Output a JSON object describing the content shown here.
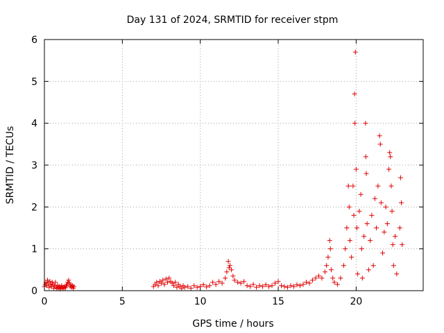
{
  "chart_data": {
    "type": "scatter",
    "title": "Day 131 of 2024, SRMTID for receiver stpm",
    "xlabel": "GPS time / hours",
    "ylabel": "SRMTID / TECUs",
    "xlim": [
      0,
      24.3
    ],
    "ylim": [
      0,
      6
    ],
    "xticks": [
      0,
      5,
      10,
      15,
      20
    ],
    "yticks": [
      0,
      1,
      2,
      3,
      4,
      5,
      6
    ],
    "grid": true,
    "marker": "+",
    "color": "#e00000",
    "series": [
      {
        "name": "SRMTID",
        "points": [
          [
            0.0,
            0.1
          ],
          [
            0.05,
            0.15
          ],
          [
            0.1,
            0.2
          ],
          [
            0.15,
            0.12
          ],
          [
            0.2,
            0.25
          ],
          [
            0.25,
            0.18
          ],
          [
            0.3,
            0.08
          ],
          [
            0.35,
            0.22
          ],
          [
            0.4,
            0.14
          ],
          [
            0.45,
            0.1
          ],
          [
            0.5,
            0.2
          ],
          [
            0.55,
            0.16
          ],
          [
            0.6,
            0.06
          ],
          [
            0.65,
            0.12
          ],
          [
            0.7,
            0.2
          ],
          [
            0.75,
            0.09
          ],
          [
            0.8,
            0.05
          ],
          [
            0.85,
            0.13
          ],
          [
            0.9,
            0.07
          ],
          [
            0.95,
            0.1
          ],
          [
            1.0,
            0.04
          ],
          [
            1.05,
            0.08
          ],
          [
            1.1,
            0.12
          ],
          [
            1.15,
            0.06
          ],
          [
            1.2,
            0.09
          ],
          [
            1.25,
            0.05
          ],
          [
            1.3,
            0.1
          ],
          [
            1.35,
            0.07
          ],
          [
            1.4,
            0.12
          ],
          [
            1.45,
            0.15
          ],
          [
            1.5,
            0.2
          ],
          [
            1.55,
            0.25
          ],
          [
            1.6,
            0.18
          ],
          [
            1.65,
            0.1
          ],
          [
            1.7,
            0.14
          ],
          [
            1.75,
            0.08
          ],
          [
            1.8,
            0.12
          ],
          [
            1.85,
            0.06
          ],
          [
            1.9,
            0.1
          ],
          [
            7.0,
            0.1
          ],
          [
            7.1,
            0.15
          ],
          [
            7.2,
            0.2
          ],
          [
            7.3,
            0.12
          ],
          [
            7.4,
            0.22
          ],
          [
            7.5,
            0.18
          ],
          [
            7.6,
            0.25
          ],
          [
            7.7,
            0.15
          ],
          [
            7.8,
            0.28
          ],
          [
            7.9,
            0.2
          ],
          [
            8.0,
            0.3
          ],
          [
            8.1,
            0.22
          ],
          [
            8.2,
            0.18
          ],
          [
            8.3,
            0.12
          ],
          [
            8.4,
            0.2
          ],
          [
            8.5,
            0.08
          ],
          [
            8.6,
            0.15
          ],
          [
            8.7,
            0.1
          ],
          [
            8.8,
            0.05
          ],
          [
            8.9,
            0.12
          ],
          [
            9.0,
            0.08
          ],
          [
            9.2,
            0.1
          ],
          [
            9.4,
            0.06
          ],
          [
            9.6,
            0.12
          ],
          [
            9.8,
            0.08
          ],
          [
            10.0,
            0.1
          ],
          [
            10.2,
            0.14
          ],
          [
            10.4,
            0.09
          ],
          [
            10.6,
            0.12
          ],
          [
            10.8,
            0.2
          ],
          [
            11.0,
            0.15
          ],
          [
            11.2,
            0.22
          ],
          [
            11.4,
            0.18
          ],
          [
            11.6,
            0.3
          ],
          [
            11.7,
            0.45
          ],
          [
            11.8,
            0.7
          ],
          [
            11.85,
            0.55
          ],
          [
            11.9,
            0.6
          ],
          [
            12.0,
            0.5
          ],
          [
            12.1,
            0.35
          ],
          [
            12.2,
            0.25
          ],
          [
            12.4,
            0.2
          ],
          [
            12.6,
            0.18
          ],
          [
            12.8,
            0.22
          ],
          [
            13.0,
            0.12
          ],
          [
            13.2,
            0.1
          ],
          [
            13.4,
            0.15
          ],
          [
            13.6,
            0.08
          ],
          [
            13.8,
            0.12
          ],
          [
            14.0,
            0.1
          ],
          [
            14.2,
            0.14
          ],
          [
            14.4,
            0.1
          ],
          [
            14.6,
            0.12
          ],
          [
            14.8,
            0.18
          ],
          [
            15.0,
            0.22
          ],
          [
            15.2,
            0.12
          ],
          [
            15.4,
            0.1
          ],
          [
            15.6,
            0.08
          ],
          [
            15.8,
            0.12
          ],
          [
            16.0,
            0.1
          ],
          [
            16.2,
            0.14
          ],
          [
            16.4,
            0.12
          ],
          [
            16.6,
            0.15
          ],
          [
            16.8,
            0.2
          ],
          [
            17.0,
            0.18
          ],
          [
            17.2,
            0.25
          ],
          [
            17.4,
            0.3
          ],
          [
            17.6,
            0.35
          ],
          [
            17.8,
            0.3
          ],
          [
            18.0,
            0.45
          ],
          [
            18.1,
            0.6
          ],
          [
            18.2,
            0.8
          ],
          [
            18.3,
            1.2
          ],
          [
            18.35,
            1.0
          ],
          [
            18.4,
            0.5
          ],
          [
            18.5,
            0.3
          ],
          [
            18.6,
            0.2
          ],
          [
            18.8,
            0.15
          ],
          [
            19.0,
            0.3
          ],
          [
            19.2,
            0.6
          ],
          [
            19.3,
            1.0
          ],
          [
            19.4,
            1.5
          ],
          [
            19.5,
            2.5
          ],
          [
            19.55,
            2.0
          ],
          [
            19.6,
            1.2
          ],
          [
            19.7,
            0.8
          ],
          [
            19.8,
            2.5
          ],
          [
            19.85,
            1.8
          ],
          [
            19.9,
            4.7
          ],
          [
            19.92,
            4.0
          ],
          [
            19.95,
            5.7
          ],
          [
            20.0,
            2.9
          ],
          [
            20.05,
            1.5
          ],
          [
            20.1,
            0.4
          ],
          [
            20.2,
            1.9
          ],
          [
            20.3,
            2.3
          ],
          [
            20.35,
            1.0
          ],
          [
            20.4,
            0.3
          ],
          [
            20.5,
            1.3
          ],
          [
            20.6,
            4.0
          ],
          [
            20.62,
            3.2
          ],
          [
            20.65,
            2.8
          ],
          [
            20.7,
            1.6
          ],
          [
            20.8,
            0.5
          ],
          [
            20.9,
            1.2
          ],
          [
            21.0,
            1.8
          ],
          [
            21.1,
            0.6
          ],
          [
            21.2,
            2.2
          ],
          [
            21.3,
            1.5
          ],
          [
            21.4,
            2.5
          ],
          [
            21.5,
            3.7
          ],
          [
            21.55,
            3.5
          ],
          [
            21.6,
            2.1
          ],
          [
            21.7,
            0.9
          ],
          [
            21.8,
            1.4
          ],
          [
            21.9,
            2.0
          ],
          [
            22.0,
            1.6
          ],
          [
            22.1,
            2.9
          ],
          [
            22.15,
            3.3
          ],
          [
            22.2,
            3.2
          ],
          [
            22.25,
            2.5
          ],
          [
            22.3,
            1.9
          ],
          [
            22.35,
            1.1
          ],
          [
            22.4,
            0.6
          ],
          [
            22.5,
            1.3
          ],
          [
            22.6,
            0.4
          ],
          [
            22.8,
            1.5
          ],
          [
            22.85,
            2.7
          ],
          [
            22.9,
            2.1
          ],
          [
            22.95,
            1.1
          ]
        ]
      }
    ]
  }
}
